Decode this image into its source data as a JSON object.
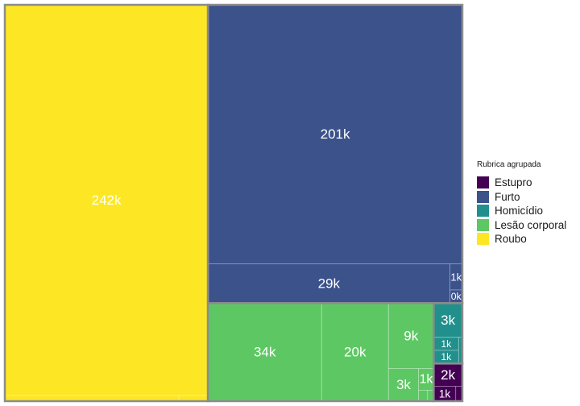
{
  "chart_data": {
    "type": "treemap",
    "legend": {
      "title": "Rubrica agrupada",
      "position": "right",
      "entries": [
        {
          "name": "Estupro",
          "color": "#440154"
        },
        {
          "name": "Furto",
          "color": "#3B528B"
        },
        {
          "name": "Homicídio",
          "color": "#21908C"
        },
        {
          "name": "Lesão corporal",
          "color": "#5DC863"
        },
        {
          "name": "Roubo",
          "color": "#FDE725"
        }
      ]
    },
    "groups": [
      {
        "name": "Roubo",
        "color": "#FDE725",
        "items": [
          {
            "value": 242,
            "label": "242k"
          },
          {
            "value": 3
          },
          {
            "value": 0.5
          }
        ]
      },
      {
        "name": "Furto",
        "color": "#3B528B",
        "items": [
          {
            "value": 201,
            "label": "201k"
          },
          {
            "value": 29,
            "label": "29k"
          },
          {
            "value": 1,
            "label": "1k"
          },
          {
            "value": 0.5,
            "label": "0k"
          }
        ]
      },
      {
        "name": "Lesão corporal",
        "color": "#5DC863",
        "items": [
          {
            "value": 34,
            "label": "34k"
          },
          {
            "value": 20,
            "label": "20k"
          },
          {
            "value": 9,
            "label": "9k"
          },
          {
            "value": 3,
            "label": "3k"
          },
          {
            "value": 1,
            "label": "1k"
          },
          {
            "value": 0.3
          },
          {
            "value": 0.2
          }
        ]
      },
      {
        "name": "Homicídio",
        "color": "#21908C",
        "items": [
          {
            "value": 3,
            "label": "3k"
          },
          {
            "value": 1,
            "label": "1k"
          },
          {
            "value": 1,
            "label": "1k"
          },
          {
            "value": 0.3
          }
        ]
      },
      {
        "name": "Estupro",
        "color": "#440154",
        "items": [
          {
            "value": 2,
            "label": "2k"
          },
          {
            "value": 1,
            "label": "1k"
          },
          {
            "value": 0.3
          }
        ]
      }
    ]
  }
}
